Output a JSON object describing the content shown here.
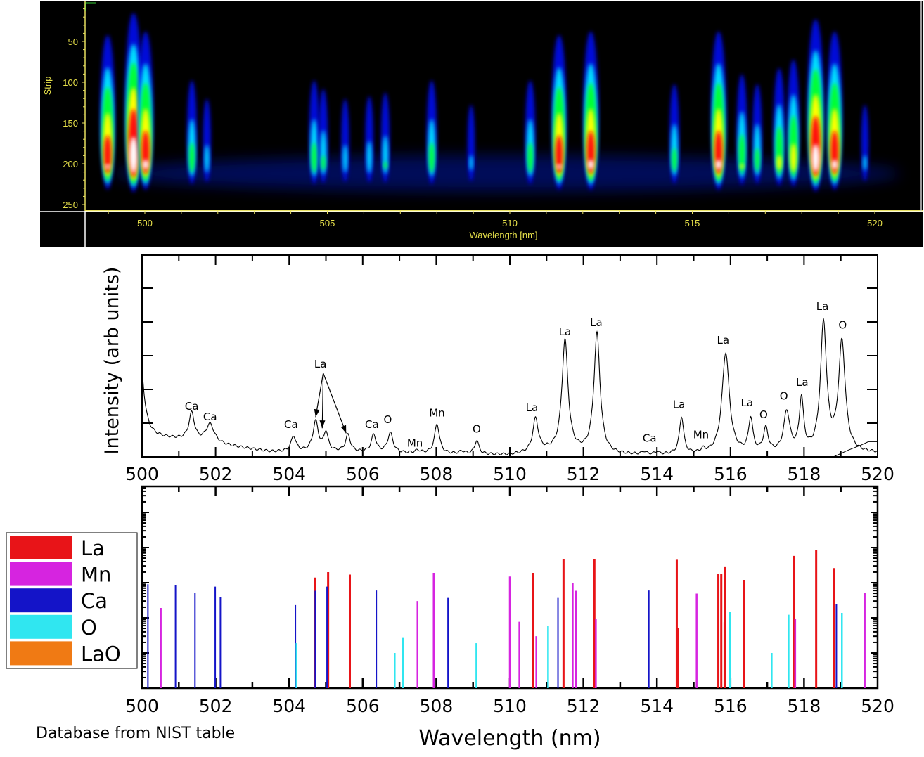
{
  "chart_data": [
    {
      "type": "heatmap",
      "panel": "spectrogram",
      "ylabel": "Strip",
      "xlabel": "Wavelength [nm]",
      "xlim": [
        498.4,
        521.3
      ],
      "ylim": [
        0,
        258
      ],
      "y_inverted": true,
      "xticks": [
        "500",
        "505",
        "510",
        "515",
        "520"
      ],
      "xtick_values": [
        500,
        505,
        510,
        515,
        520
      ],
      "yticks": [
        "50",
        "100",
        "150",
        "200",
        "250"
      ],
      "ytick_values": [
        50,
        100,
        150,
        200,
        250
      ],
      "colormap": [
        "#000000",
        "#0010ff",
        "#00e0ff",
        "#00ff30",
        "#ffff00",
        "#ff1010",
        "#ffffff"
      ],
      "lines": [
        {
          "wavelength": 498.98,
          "intensity": 0.82
        },
        {
          "wavelength": 499.69,
          "intensity": 1.0
        },
        {
          "wavelength": 500.02,
          "intensity": 0.85
        },
        {
          "wavelength": 501.29,
          "intensity": 0.45
        },
        {
          "wavelength": 501.7,
          "intensity": 0.3
        },
        {
          "wavelength": 504.64,
          "intensity": 0.45
        },
        {
          "wavelength": 504.89,
          "intensity": 0.38
        },
        {
          "wavelength": 505.49,
          "intensity": 0.3
        },
        {
          "wavelength": 506.15,
          "intensity": 0.32
        },
        {
          "wavelength": 506.59,
          "intensity": 0.35
        },
        {
          "wavelength": 507.86,
          "intensity": 0.45
        },
        {
          "wavelength": 508.94,
          "intensity": 0.25
        },
        {
          "wavelength": 510.56,
          "intensity": 0.45
        },
        {
          "wavelength": 511.35,
          "intensity": 0.82
        },
        {
          "wavelength": 512.22,
          "intensity": 0.85
        },
        {
          "wavelength": 514.51,
          "intensity": 0.42
        },
        {
          "wavelength": 515.72,
          "intensity": 0.85
        },
        {
          "wavelength": 516.36,
          "intensity": 0.5
        },
        {
          "wavelength": 516.78,
          "intensity": 0.42
        },
        {
          "wavelength": 517.38,
          "intensity": 0.55
        },
        {
          "wavelength": 517.77,
          "intensity": 0.62
        },
        {
          "wavelength": 518.38,
          "intensity": 0.95
        },
        {
          "wavelength": 518.9,
          "intensity": 0.85
        },
        {
          "wavelength": 519.73,
          "intensity": 0.25
        }
      ]
    },
    {
      "type": "line",
      "panel": "measured-spectrum",
      "ylabel": "Intensity (arb units)",
      "xlim": [
        500,
        520
      ],
      "ylim": [
        0,
        6
      ],
      "xticks": [
        "500",
        "502",
        "504",
        "506",
        "508",
        "510",
        "512",
        "514",
        "516",
        "518",
        "520"
      ],
      "xtick_values": [
        500,
        502,
        504,
        506,
        508,
        510,
        512,
        514,
        516,
        518,
        520
      ],
      "yticks_labeled": false,
      "ytick_values": [
        1,
        2,
        3,
        4,
        5
      ],
      "baseline": [
        [
          500,
          0.6
        ],
        [
          500.6,
          0.55
        ],
        [
          501.2,
          0.5
        ],
        [
          502.5,
          0.3
        ],
        [
          503.5,
          0.15
        ],
        [
          505,
          0.15
        ],
        [
          507,
          0.1
        ],
        [
          510,
          0.05
        ],
        [
          511,
          0.15
        ],
        [
          512.8,
          0.05
        ],
        [
          515,
          0.05
        ],
        [
          520,
          0.1
        ]
      ],
      "peaks": [
        {
          "x": 499.95,
          "h": 2.3,
          "w": 0.12
        },
        {
          "x": 501.35,
          "h": 0.8,
          "w": 0.09
        },
        {
          "x": 501.85,
          "h": 0.55,
          "w": 0.14
        },
        {
          "x": 504.12,
          "h": 0.45,
          "w": 0.08
        },
        {
          "x": 504.72,
          "h": 0.88,
          "w": 0.09
        },
        {
          "x": 505.0,
          "h": 0.55,
          "w": 0.07
        },
        {
          "x": 505.6,
          "h": 0.5,
          "w": 0.08
        },
        {
          "x": 506.3,
          "h": 0.52,
          "w": 0.08
        },
        {
          "x": 506.75,
          "h": 0.58,
          "w": 0.09
        },
        {
          "x": 507.5,
          "h": 0.08,
          "w": 0.1
        },
        {
          "x": 508.02,
          "h": 0.88,
          "w": 0.08
        },
        {
          "x": 508.7,
          "h": 0.08,
          "w": 0.08
        },
        {
          "x": 509.1,
          "h": 0.4,
          "w": 0.07
        },
        {
          "x": 510.7,
          "h": 0.98,
          "w": 0.09
        },
        {
          "x": 511.5,
          "h": 3.3,
          "w": 0.1
        },
        {
          "x": 512.37,
          "h": 3.55,
          "w": 0.1
        },
        {
          "x": 513.65,
          "h": 0.08,
          "w": 0.06
        },
        {
          "x": 514.0,
          "h": 0.08,
          "w": 0.05
        },
        {
          "x": 514.67,
          "h": 1.1,
          "w": 0.07
        },
        {
          "x": 515.25,
          "h": 0.1,
          "w": 0.07
        },
        {
          "x": 515.87,
          "h": 3.0,
          "w": 0.12
        },
        {
          "x": 516.55,
          "h": 1.0,
          "w": 0.07
        },
        {
          "x": 516.96,
          "h": 0.7,
          "w": 0.08
        },
        {
          "x": 517.53,
          "h": 1.2,
          "w": 0.1
        },
        {
          "x": 517.93,
          "h": 1.55,
          "w": 0.07
        },
        {
          "x": 518.53,
          "h": 3.8,
          "w": 0.1
        },
        {
          "x": 519.03,
          "h": 3.25,
          "w": 0.11
        }
      ],
      "secondary_curve": [
        [
          518.8,
          0
        ],
        [
          519.2,
          0.2
        ],
        [
          519.55,
          0.35
        ],
        [
          519.75,
          0.45
        ],
        [
          520,
          0.45
        ]
      ],
      "annotations": [
        {
          "text": "Ca",
          "x": 501.35,
          "y": 1.4
        },
        {
          "text": "Ca",
          "x": 501.85,
          "y": 1.08
        },
        {
          "text": "Ca",
          "x": 504.05,
          "y": 0.85
        },
        {
          "text": "La",
          "x": 504.85,
          "y": 2.65,
          "arrows_to": [
            [
              504.72,
              1.18
            ],
            [
              504.9,
              0.85
            ],
            [
              505.55,
              0.7
            ]
          ]
        },
        {
          "text": "Ca",
          "x": 506.25,
          "y": 0.85
        },
        {
          "text": "O",
          "x": 506.68,
          "y": 1.0
        },
        {
          "text": "Mn",
          "x": 507.42,
          "y": 0.3
        },
        {
          "text": "Mn",
          "x": 508.02,
          "y": 1.2
        },
        {
          "text": "O",
          "x": 509.1,
          "y": 0.72
        },
        {
          "text": "La",
          "x": 510.6,
          "y": 1.35
        },
        {
          "text": "La",
          "x": 511.5,
          "y": 3.6
        },
        {
          "text": "La",
          "x": 512.35,
          "y": 3.88
        },
        {
          "text": "Ca",
          "x": 513.8,
          "y": 0.45
        },
        {
          "text": "La",
          "x": 514.6,
          "y": 1.45
        },
        {
          "text": "Mn",
          "x": 515.2,
          "y": 0.55
        },
        {
          "text": "La",
          "x": 515.8,
          "y": 3.35
        },
        {
          "text": "La",
          "x": 516.45,
          "y": 1.5
        },
        {
          "text": "O",
          "x": 516.9,
          "y": 1.15
        },
        {
          "text": "O",
          "x": 517.45,
          "y": 1.7
        },
        {
          "text": "La",
          "x": 517.95,
          "y": 2.1
        },
        {
          "text": "La",
          "x": 518.5,
          "y": 4.35
        },
        {
          "text": "O",
          "x": 519.05,
          "y": 3.8
        }
      ]
    },
    {
      "type": "bar",
      "panel": "nist-lines",
      "xlabel": "Wavelength (nm)",
      "xlim": [
        500,
        520
      ],
      "yscale": "log",
      "ylim": [
        1,
        550000
      ],
      "yticks_labeled": false,
      "xticks": [
        "500",
        "502",
        "504",
        "506",
        "508",
        "510",
        "512",
        "514",
        "516",
        "518",
        "520"
      ],
      "xtick_values": [
        500,
        502,
        504,
        506,
        508,
        510,
        512,
        514,
        516,
        518,
        520
      ],
      "legend_position": "left",
      "series": [
        {
          "name": "La",
          "color": "#e81418",
          "lines": [
            [
              504.71,
              1400
            ],
            [
              505.06,
              2000
            ],
            [
              505.65,
              1700
            ],
            [
              510.63,
              1900
            ],
            [
              511.46,
              4700
            ],
            [
              512.3,
              4600
            ],
            [
              514.54,
              4500
            ],
            [
              514.57,
              50
            ],
            [
              515.67,
              1800
            ],
            [
              515.75,
              1800
            ],
            [
              515.84,
              75
            ],
            [
              515.86,
              2900
            ],
            [
              516.36,
              1200
            ],
            [
              517.72,
              5800
            ],
            [
              518.33,
              8300
            ],
            [
              518.81,
              2600
            ]
          ]
        },
        {
          "name": "Mn",
          "color": "#d624e0",
          "lines": [
            [
              500.51,
              190
            ],
            [
              507.49,
              300
            ],
            [
              507.93,
              1900
            ],
            [
              510.0,
              1500
            ],
            [
              510.26,
              77
            ],
            [
              510.72,
              30
            ],
            [
              511.71,
              970
            ],
            [
              511.8,
              590
            ],
            [
              512.34,
              94
            ],
            [
              515.08,
              490
            ],
            [
              517.76,
              94
            ],
            [
              519.65,
              500
            ]
          ]
        },
        {
          "name": "Ca",
          "color": "#1414c8",
          "lines": [
            [
              500.16,
              900
            ],
            [
              500.91,
              860
            ],
            [
              501.44,
              500
            ],
            [
              501.99,
              770
            ],
            [
              502.13,
              390
            ],
            [
              504.17,
              230
            ],
            [
              504.71,
              590
            ],
            [
              505.03,
              770
            ],
            [
              506.37,
              600
            ],
            [
              508.32,
              370
            ],
            [
              511.31,
              370
            ],
            [
              513.78,
              600
            ],
            [
              518.88,
              240
            ]
          ]
        },
        {
          "name": "O",
          "color": "#30e6f0",
          "lines": [
            [
              504.2,
              19
            ],
            [
              506.87,
              10
            ],
            [
              507.09,
              28
            ],
            [
              509.09,
              19
            ],
            [
              511.04,
              60
            ],
            [
              515.98,
              147
            ],
            [
              517.12,
              10
            ],
            [
              517.58,
              122
            ],
            [
              519.03,
              138
            ]
          ]
        },
        {
          "name": "LaO",
          "color": "#f07a14",
          "lines": []
        }
      ]
    }
  ],
  "footnote": "Database from NIST table"
}
